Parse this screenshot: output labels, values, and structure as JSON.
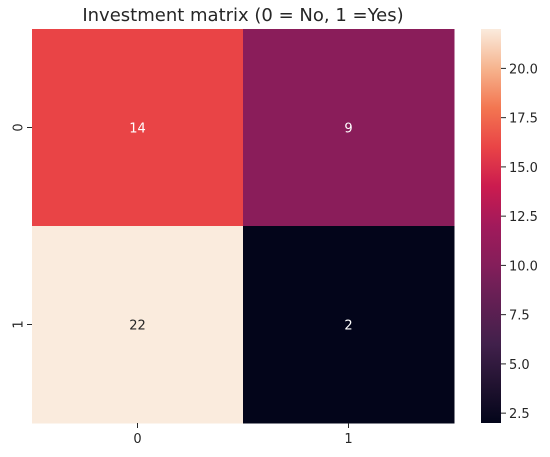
{
  "chart_data": {
    "type": "heatmap",
    "title": "Investment matrix (0 = No, 1 =Yes)",
    "x_categories": [
      "0",
      "1"
    ],
    "y_categories": [
      "0",
      "1"
    ],
    "values": [
      [
        14,
        9
      ],
      [
        22,
        2
      ]
    ],
    "annotations": [
      [
        "14",
        "9"
      ],
      [
        "22",
        "2"
      ]
    ],
    "colormap": "rocket",
    "colorbar": {
      "vmin": 2,
      "vmax": 22,
      "ticks": [
        2.5,
        5.0,
        7.5,
        10.0,
        12.5,
        15.0,
        17.5,
        20.0
      ],
      "tick_labels": [
        "2.5",
        "5.0",
        "7.5",
        "10.0",
        "12.5",
        "15.0",
        "17.5",
        "20.0"
      ]
    },
    "cell_colors": [
      [
        "#e94446",
        "#8a1d5a"
      ],
      [
        "#faebdd",
        "#03051a"
      ]
    ],
    "annotation_colors": [
      [
        "#ffffff",
        "#ffffff"
      ],
      [
        "#262626",
        "#ffffff"
      ]
    ],
    "colormap_stops": [
      {
        "pos": 0.0,
        "color": "#03051a"
      },
      {
        "pos": 0.1,
        "color": "#221331"
      },
      {
        "pos": 0.2,
        "color": "#41204b"
      },
      {
        "pos": 0.3,
        "color": "#611f53"
      },
      {
        "pos": 0.35,
        "color": "#711f57"
      },
      {
        "pos": 0.4,
        "color": "#841e5a"
      },
      {
        "pos": 0.5,
        "color": "#a11a5b"
      },
      {
        "pos": 0.6,
        "color": "#cb1b4f"
      },
      {
        "pos": 0.7,
        "color": "#e94446"
      },
      {
        "pos": 0.8,
        "color": "#f37651"
      },
      {
        "pos": 0.9,
        "color": "#f6b48e"
      },
      {
        "pos": 1.0,
        "color": "#faebdd"
      }
    ]
  }
}
